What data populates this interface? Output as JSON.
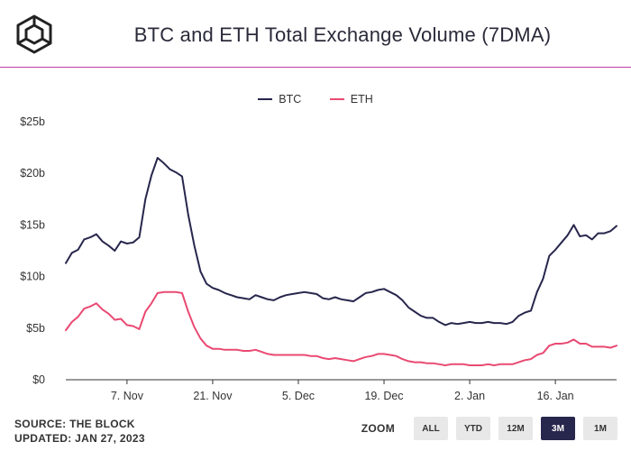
{
  "header": {
    "title": "BTC and ETH Total Exchange Volume (7DMA)",
    "logo_icon": "cube-logo-icon"
  },
  "footer": {
    "source": "SOURCE: THE BLOCK",
    "updated": "UPDATED: JAN 27, 2023"
  },
  "zoom": {
    "label": "ZOOM",
    "options": [
      "ALL",
      "YTD",
      "12M",
      "3M",
      "1M"
    ],
    "selected": "3M"
  },
  "colors": {
    "btc": "#27264c",
    "eth": "#e94a72",
    "accent_divider": "#c13ea3",
    "zoom_active": "#27264c"
  },
  "chart_data": {
    "type": "line",
    "title": "BTC and ETH Total Exchange Volume (7DMA)",
    "x_start": "2022-10-28",
    "x_end": "2023-01-26",
    "x_ticks": [
      {
        "label": "7. Nov",
        "date": "2022-11-07"
      },
      {
        "label": "21. Nov",
        "date": "2022-11-21"
      },
      {
        "label": "5. Dec",
        "date": "2022-12-05"
      },
      {
        "label": "19. Dec",
        "date": "2022-12-19"
      },
      {
        "label": "2. Jan",
        "date": "2023-01-02"
      },
      {
        "label": "16. Jan",
        "date": "2023-01-16"
      }
    ],
    "y_ticks": [
      {
        "label": "$0",
        "value": 0
      },
      {
        "label": "$5b",
        "value": 5
      },
      {
        "label": "$10b",
        "value": 10
      },
      {
        "label": "$15b",
        "value": 15
      },
      {
        "label": "$20b",
        "value": 20
      },
      {
        "label": "$25b",
        "value": 25
      }
    ],
    "ylim": [
      0,
      25
    ],
    "grid": false,
    "legend_position": "top-center",
    "series": [
      {
        "name": "BTC",
        "color": "#27264c",
        "points": [
          [
            "2022-10-28",
            11.3
          ],
          [
            "2022-10-29",
            12.3
          ],
          [
            "2022-10-30",
            12.6
          ],
          [
            "2022-10-31",
            13.6
          ],
          [
            "2022-11-01",
            13.8
          ],
          [
            "2022-11-02",
            14.1
          ],
          [
            "2022-11-03",
            13.4
          ],
          [
            "2022-11-04",
            13.0
          ],
          [
            "2022-11-05",
            12.5
          ],
          [
            "2022-11-06",
            13.4
          ],
          [
            "2022-11-07",
            13.2
          ],
          [
            "2022-11-08",
            13.3
          ],
          [
            "2022-11-09",
            13.8
          ],
          [
            "2022-11-10",
            17.5
          ],
          [
            "2022-11-11",
            19.8
          ],
          [
            "2022-11-12",
            21.5
          ],
          [
            "2022-11-13",
            21.0
          ],
          [
            "2022-11-14",
            20.4
          ],
          [
            "2022-11-15",
            20.1
          ],
          [
            "2022-11-16",
            19.7
          ],
          [
            "2022-11-17",
            16.0
          ],
          [
            "2022-11-18",
            13.0
          ],
          [
            "2022-11-19",
            10.5
          ],
          [
            "2022-11-20",
            9.3
          ],
          [
            "2022-11-21",
            8.9
          ],
          [
            "2022-11-22",
            8.7
          ],
          [
            "2022-11-23",
            8.4
          ],
          [
            "2022-11-24",
            8.2
          ],
          [
            "2022-11-25",
            8.0
          ],
          [
            "2022-11-26",
            7.9
          ],
          [
            "2022-11-27",
            7.8
          ],
          [
            "2022-11-28",
            8.2
          ],
          [
            "2022-11-29",
            8.0
          ],
          [
            "2022-11-30",
            7.8
          ],
          [
            "2022-12-01",
            7.7
          ],
          [
            "2022-12-02",
            8.0
          ],
          [
            "2022-12-03",
            8.2
          ],
          [
            "2022-12-04",
            8.3
          ],
          [
            "2022-12-05",
            8.4
          ],
          [
            "2022-12-06",
            8.5
          ],
          [
            "2022-12-07",
            8.4
          ],
          [
            "2022-12-08",
            8.3
          ],
          [
            "2022-12-09",
            7.9
          ],
          [
            "2022-12-10",
            7.8
          ],
          [
            "2022-12-11",
            8.0
          ],
          [
            "2022-12-12",
            7.8
          ],
          [
            "2022-12-13",
            7.7
          ],
          [
            "2022-12-14",
            7.6
          ],
          [
            "2022-12-15",
            8.0
          ],
          [
            "2022-12-16",
            8.4
          ],
          [
            "2022-12-17",
            8.5
          ],
          [
            "2022-12-18",
            8.7
          ],
          [
            "2022-12-19",
            8.8
          ],
          [
            "2022-12-20",
            8.5
          ],
          [
            "2022-12-21",
            8.2
          ],
          [
            "2022-12-22",
            7.7
          ],
          [
            "2022-12-23",
            7.0
          ],
          [
            "2022-12-24",
            6.6
          ],
          [
            "2022-12-25",
            6.2
          ],
          [
            "2022-12-26",
            6.0
          ],
          [
            "2022-12-27",
            6.0
          ],
          [
            "2022-12-28",
            5.6
          ],
          [
            "2022-12-29",
            5.3
          ],
          [
            "2022-12-30",
            5.5
          ],
          [
            "2022-12-31",
            5.4
          ],
          [
            "2023-01-01",
            5.5
          ],
          [
            "2023-01-02",
            5.6
          ],
          [
            "2023-01-03",
            5.5
          ],
          [
            "2023-01-04",
            5.5
          ],
          [
            "2023-01-05",
            5.6
          ],
          [
            "2023-01-06",
            5.5
          ],
          [
            "2023-01-07",
            5.5
          ],
          [
            "2023-01-08",
            5.4
          ],
          [
            "2023-01-09",
            5.6
          ],
          [
            "2023-01-10",
            6.2
          ],
          [
            "2023-01-11",
            6.5
          ],
          [
            "2023-01-12",
            6.7
          ],
          [
            "2023-01-13",
            8.5
          ],
          [
            "2023-01-14",
            9.8
          ],
          [
            "2023-01-15",
            12.0
          ],
          [
            "2023-01-16",
            12.6
          ],
          [
            "2023-01-17",
            13.3
          ],
          [
            "2023-01-18",
            14.0
          ],
          [
            "2023-01-19",
            15.0
          ],
          [
            "2023-01-20",
            13.9
          ],
          [
            "2023-01-21",
            14.0
          ],
          [
            "2023-01-22",
            13.6
          ],
          [
            "2023-01-23",
            14.2
          ],
          [
            "2023-01-24",
            14.2
          ],
          [
            "2023-01-25",
            14.4
          ],
          [
            "2023-01-26",
            14.9
          ]
        ]
      },
      {
        "name": "ETH",
        "color": "#e94a72",
        "points": [
          [
            "2022-10-28",
            4.8
          ],
          [
            "2022-10-29",
            5.6
          ],
          [
            "2022-10-30",
            6.1
          ],
          [
            "2022-10-31",
            6.9
          ],
          [
            "2022-11-01",
            7.1
          ],
          [
            "2022-11-02",
            7.4
          ],
          [
            "2022-11-03",
            6.8
          ],
          [
            "2022-11-04",
            6.4
          ],
          [
            "2022-11-05",
            5.8
          ],
          [
            "2022-11-06",
            5.9
          ],
          [
            "2022-11-07",
            5.3
          ],
          [
            "2022-11-08",
            5.2
          ],
          [
            "2022-11-09",
            4.9
          ],
          [
            "2022-11-10",
            6.6
          ],
          [
            "2022-11-11",
            7.4
          ],
          [
            "2022-11-12",
            8.4
          ],
          [
            "2022-11-13",
            8.5
          ],
          [
            "2022-11-14",
            8.5
          ],
          [
            "2022-11-15",
            8.5
          ],
          [
            "2022-11-16",
            8.4
          ],
          [
            "2022-11-17",
            6.6
          ],
          [
            "2022-11-18",
            5.1
          ],
          [
            "2022-11-19",
            4.0
          ],
          [
            "2022-11-20",
            3.3
          ],
          [
            "2022-11-21",
            3.0
          ],
          [
            "2022-11-22",
            3.0
          ],
          [
            "2022-11-23",
            2.9
          ],
          [
            "2022-11-24",
            2.9
          ],
          [
            "2022-11-25",
            2.9
          ],
          [
            "2022-11-26",
            2.8
          ],
          [
            "2022-11-27",
            2.8
          ],
          [
            "2022-11-28",
            2.9
          ],
          [
            "2022-11-29",
            2.7
          ],
          [
            "2022-11-30",
            2.5
          ],
          [
            "2022-12-01",
            2.4
          ],
          [
            "2022-12-02",
            2.4
          ],
          [
            "2022-12-03",
            2.4
          ],
          [
            "2022-12-04",
            2.4
          ],
          [
            "2022-12-05",
            2.4
          ],
          [
            "2022-12-06",
            2.4
          ],
          [
            "2022-12-07",
            2.3
          ],
          [
            "2022-12-08",
            2.3
          ],
          [
            "2022-12-09",
            2.1
          ],
          [
            "2022-12-10",
            2.0
          ],
          [
            "2022-12-11",
            2.1
          ],
          [
            "2022-12-12",
            2.0
          ],
          [
            "2022-12-13",
            1.9
          ],
          [
            "2022-12-14",
            1.8
          ],
          [
            "2022-12-15",
            2.0
          ],
          [
            "2022-12-16",
            2.2
          ],
          [
            "2022-12-17",
            2.3
          ],
          [
            "2022-12-18",
            2.5
          ],
          [
            "2022-12-19",
            2.5
          ],
          [
            "2022-12-20",
            2.4
          ],
          [
            "2022-12-21",
            2.3
          ],
          [
            "2022-12-22",
            2.0
          ],
          [
            "2022-12-23",
            1.8
          ],
          [
            "2022-12-24",
            1.7
          ],
          [
            "2022-12-25",
            1.7
          ],
          [
            "2022-12-26",
            1.6
          ],
          [
            "2022-12-27",
            1.6
          ],
          [
            "2022-12-28",
            1.5
          ],
          [
            "2022-12-29",
            1.4
          ],
          [
            "2022-12-30",
            1.5
          ],
          [
            "2022-12-31",
            1.5
          ],
          [
            "2023-01-01",
            1.5
          ],
          [
            "2023-01-02",
            1.4
          ],
          [
            "2023-01-03",
            1.4
          ],
          [
            "2023-01-04",
            1.4
          ],
          [
            "2023-01-05",
            1.5
          ],
          [
            "2023-01-06",
            1.4
          ],
          [
            "2023-01-07",
            1.5
          ],
          [
            "2023-01-08",
            1.5
          ],
          [
            "2023-01-09",
            1.5
          ],
          [
            "2023-01-10",
            1.7
          ],
          [
            "2023-01-11",
            1.9
          ],
          [
            "2023-01-12",
            2.0
          ],
          [
            "2023-01-13",
            2.4
          ],
          [
            "2023-01-14",
            2.6
          ],
          [
            "2023-01-15",
            3.3
          ],
          [
            "2023-01-16",
            3.5
          ],
          [
            "2023-01-17",
            3.5
          ],
          [
            "2023-01-18",
            3.6
          ],
          [
            "2023-01-19",
            3.9
          ],
          [
            "2023-01-20",
            3.5
          ],
          [
            "2023-01-21",
            3.5
          ],
          [
            "2023-01-22",
            3.2
          ],
          [
            "2023-01-23",
            3.2
          ],
          [
            "2023-01-24",
            3.2
          ],
          [
            "2023-01-25",
            3.1
          ],
          [
            "2023-01-26",
            3.3
          ]
        ]
      }
    ]
  }
}
